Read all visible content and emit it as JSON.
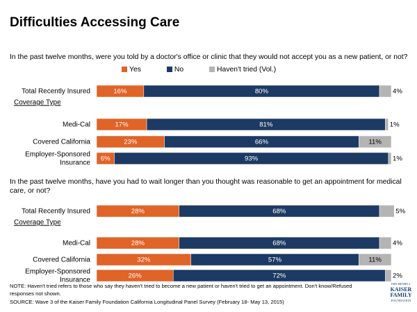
{
  "title": "Difficulties Accessing Care",
  "colors": {
    "yes": "#e06327",
    "no": "#1c3a63",
    "havent": "#b4b4b4",
    "text_on_bar": "#ffffff",
    "text_outside": "#000000"
  },
  "legend": [
    {
      "key": "yes",
      "label": "Yes"
    },
    {
      "key": "no",
      "label": "No"
    },
    {
      "key": "havent",
      "label": "Haven't tried (Vol.)"
    }
  ],
  "coverage_label": "Coverage Type",
  "questions": [
    {
      "text": "In the past twelve months, were you told by a doctor's office or clinic that they would not accept you as a new patient, or not?"
    },
    {
      "text": "In the past twelve months, have you had to wait longer than you thought was reasonable to get an appointment for medical care, or not?"
    }
  ],
  "chart_data": [
    {
      "type": "bar",
      "orientation": "horizontal",
      "stacked": true,
      "title": "In the past twelve months, were you told by a doctor's office or clinic that they would not accept you as a new patient, or not?",
      "categories": [
        "Total Recently Insured",
        "Medi-Cal",
        "Covered California",
        "Employer-Sponsored Insurance"
      ],
      "category_lines": [
        [
          "Total Recently Insured"
        ],
        [
          "Medi-Cal"
        ],
        [
          "Covered California"
        ],
        [
          "Employer-Sponsored",
          "Insurance"
        ]
      ],
      "series": [
        {
          "name": "Yes",
          "key": "yes",
          "values": [
            16,
            17,
            23,
            6
          ],
          "labels": [
            "16%",
            "17%",
            "23%",
            "6%"
          ]
        },
        {
          "name": "No",
          "key": "no",
          "values": [
            80,
            81,
            66,
            93
          ],
          "labels": [
            "80%",
            "81%",
            "66%",
            "93%"
          ]
        },
        {
          "name": "Haven't tried (Vol.)",
          "key": "havent",
          "values": [
            4,
            1,
            11,
            1
          ],
          "labels": [
            "4%",
            "1%",
            "11%",
            "1%"
          ]
        }
      ],
      "xlim": [
        0,
        100
      ]
    },
    {
      "type": "bar",
      "orientation": "horizontal",
      "stacked": true,
      "title": "In the past twelve months, have you had to wait longer than you thought was reasonable to get an appointment for medical care, or not?",
      "categories": [
        "Total Recently Insured",
        "Medi-Cal",
        "Covered California",
        "Employer-Sponsored Insurance"
      ],
      "category_lines": [
        [
          "Total Recently Insured"
        ],
        [
          "Medi-Cal"
        ],
        [
          "Covered California"
        ],
        [
          "Employer-Sponsored",
          "Insurance"
        ]
      ],
      "series": [
        {
          "name": "Yes",
          "key": "yes",
          "values": [
            28,
            28,
            32,
            26
          ],
          "labels": [
            "28%",
            "28%",
            "32%",
            "26%"
          ]
        },
        {
          "name": "No",
          "key": "no",
          "values": [
            68,
            68,
            57,
            72
          ],
          "labels": [
            "68%",
            "68%",
            "57%",
            "72%"
          ]
        },
        {
          "name": "Haven't tried (Vol.)",
          "key": "havent",
          "values": [
            5,
            4,
            11,
            2
          ],
          "labels": [
            "5%",
            "4%",
            "11%",
            "2%"
          ]
        }
      ],
      "xlim": [
        0,
        100
      ]
    }
  ],
  "footer": {
    "note": "NOTE: Haven't tried refers to those who say they haven't tried to become a new patient or haven't tried to get an appointment. Don't know/Refused responses not shown.",
    "source": "SOURCE: Wave 3 of the Kaiser Family Foundation California Longitudinal Panel Survey (February 18- May 13, 2015)"
  },
  "logo": {
    "line1": "THE HENRY J.",
    "line2": "KAISER",
    "line3": "FAMILY",
    "line4": "FOUNDATION"
  }
}
